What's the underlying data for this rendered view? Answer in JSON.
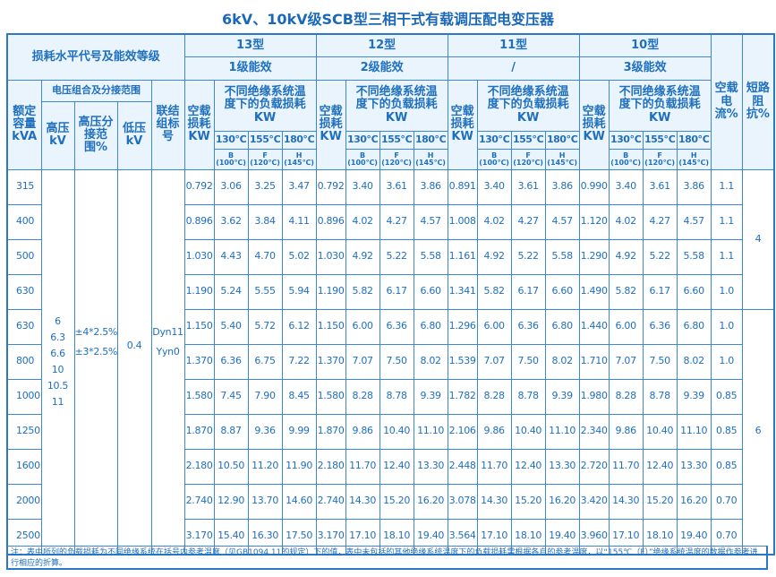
{
  "title": "6kV、10kV级SCB型三相干式有载调压配电变压器",
  "header": {
    "loss_level": "损耗水平代号及能效等级",
    "types": [
      {
        "name": "13型",
        "grade": "1级能效"
      },
      {
        "name": "12型",
        "grade": "2级能效"
      },
      {
        "name": "11型",
        "grade": "/"
      },
      {
        "name": "10型",
        "grade": "3级能效"
      }
    ],
    "no_load_current": "空载电流%",
    "short_circuit_impedance": "短路阻抗%",
    "rated_capacity": "额定容量kVA",
    "voltage_group": "电压组合及分接范围",
    "hv": "高压kV",
    "hv_tap": "高压分接范围%",
    "lv": "低压kV",
    "connection": "联结组标号",
    "no_load_loss": "空载损耗KW",
    "load_loss": "不同绝缘系统温度下的负载损耗KW",
    "temps": [
      "130℃",
      "155℃",
      "180℃"
    ],
    "classes": [
      [
        "B",
        "(100℃)"
      ],
      [
        "F",
        "(120℃)"
      ],
      [
        "H",
        "(145℃)"
      ]
    ]
  },
  "merged": {
    "hv_values": "6\n6.3\n6.6\n10\n10.5\n11",
    "tap_values": "±4*2.5%\n±3*2.5%",
    "lv_value": "0.4",
    "connection_values": "Dyn11\nYyn0",
    "impedance": [
      "4",
      "6"
    ]
  },
  "rows": [
    [
      "315",
      "0.792",
      "3.06",
      "3.25",
      "3.47",
      "0.792",
      "3.40",
      "3.61",
      "3.86",
      "0.891",
      "3.40",
      "3.61",
      "3.86",
      "0.990",
      "3.40",
      "3.61",
      "3.86",
      "1.1"
    ],
    [
      "400",
      "0.896",
      "3.62",
      "3.84",
      "4.11",
      "0.896",
      "4.02",
      "4.27",
      "4.57",
      "1.008",
      "4.02",
      "4.27",
      "4.57",
      "1.120",
      "4.02",
      "4.27",
      "4.57",
      "1.1"
    ],
    [
      "500",
      "1.030",
      "4.43",
      "4.70",
      "5.02",
      "1.030",
      "4.92",
      "5.22",
      "5.58",
      "1.161",
      "4.92",
      "5.22",
      "5.58",
      "1.290",
      "4.92",
      "5.22",
      "5.58",
      "1.1"
    ],
    [
      "630",
      "1.190",
      "5.24",
      "5.55",
      "5.94",
      "1.190",
      "5.82",
      "6.17",
      "6.60",
      "1.341",
      "5.82",
      "6.17",
      "6.60",
      "1.490",
      "5.82",
      "6.17",
      "6.60",
      "1.0"
    ],
    [
      "630",
      "1.150",
      "5.40",
      "5.72",
      "6.12",
      "1.150",
      "6.00",
      "6.36",
      "6.80",
      "1.296",
      "6.00",
      "6.36",
      "6.80",
      "1.440",
      "6.00",
      "6.36",
      "6.80",
      "1.0"
    ],
    [
      "800",
      "1.370",
      "6.36",
      "6.75",
      "7.22",
      "1.370",
      "7.07",
      "7.50",
      "8.02",
      "1.539",
      "7.07",
      "7.50",
      "8.02",
      "1.710",
      "7.07",
      "7.50",
      "8.02",
      "1.0"
    ],
    [
      "1000",
      "1.580",
      "7.45",
      "7.90",
      "8.45",
      "1.580",
      "8.28",
      "8.78",
      "9.39",
      "1.782",
      "8.28",
      "8.78",
      "9.39",
      "1.980",
      "8.28",
      "8.78",
      "9.39",
      "0.85"
    ],
    [
      "1250",
      "1.870",
      "8.87",
      "9.36",
      "9.99",
      "1.870",
      "9.86",
      "10.40",
      "11.10",
      "2.106",
      "9.86",
      "10.40",
      "11.10",
      "2.340",
      "9.86",
      "10.40",
      "11.10",
      "0.85"
    ],
    [
      "1600",
      "2.180",
      "10.50",
      "11.20",
      "11.90",
      "2.180",
      "11.70",
      "12.40",
      "13.30",
      "2.448",
      "11.70",
      "12.40",
      "13.30",
      "2.720",
      "11.70",
      "12.40",
      "13.30",
      "0.85"
    ],
    [
      "2000",
      "2.740",
      "12.90",
      "13.70",
      "14.60",
      "2.740",
      "14.30",
      "15.20",
      "16.20",
      "3.078",
      "14.30",
      "15.20",
      "16.20",
      "3.420",
      "14.30",
      "15.20",
      "16.20",
      "0.70"
    ],
    [
      "2500",
      "3.170",
      "15.40",
      "16.30",
      "17.50",
      "3.170",
      "17.10",
      "18.10",
      "19.40",
      "3.564",
      "17.10",
      "18.10",
      "19.40",
      "3.960",
      "17.10",
      "18.10",
      "19.40",
      "0.70"
    ]
  ],
  "note": "注：表中所列的负载损耗为不同绝缘系统在括号内参考温度（见GB1094.11的规定）下的值，表中未包括的其他绝缘系统温度下的负载损耗需根据各自的参考温度，以“155℃（F）”绝缘系统温度的数据作参考进行相应的折算。",
  "colors": {
    "text": "#1f6fbf",
    "border": "#3f88cf",
    "header_bg": "#eaf4fc"
  }
}
